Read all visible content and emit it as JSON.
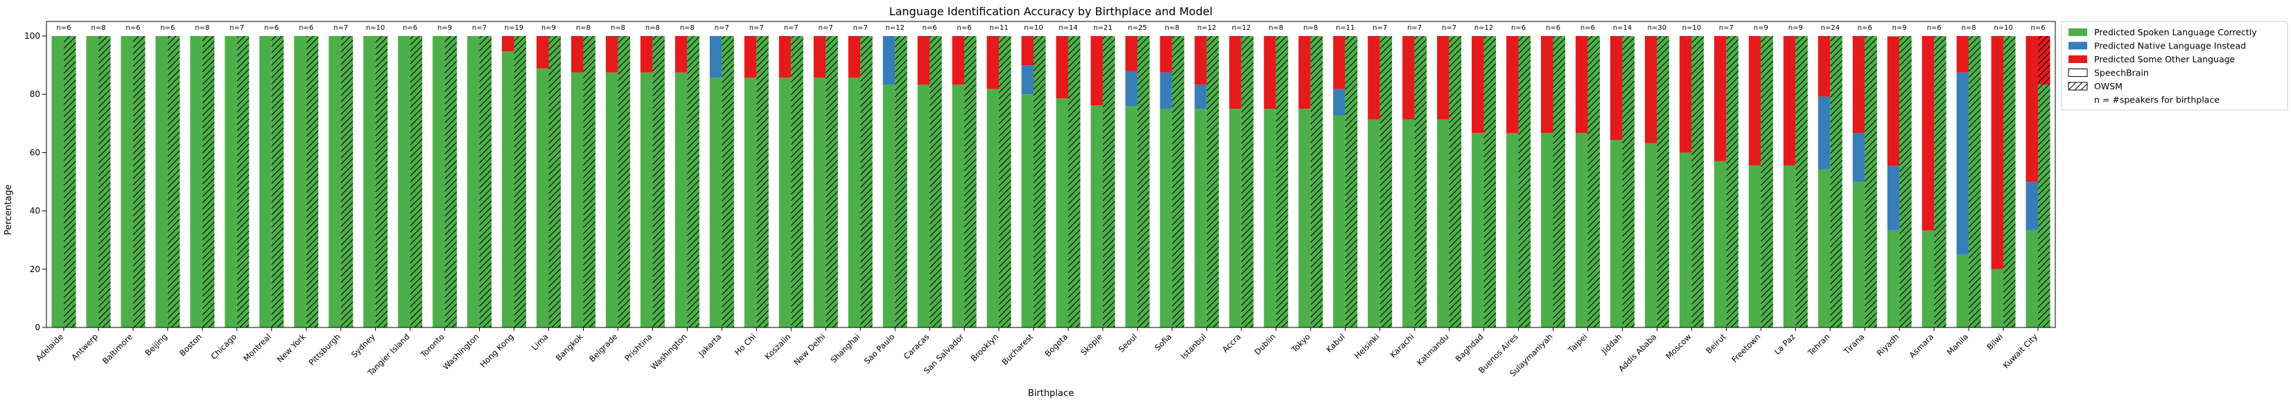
{
  "chart_data": {
    "type": "bar",
    "title": "Language Identification Accuracy by Birthplace and Model",
    "xlabel": "Birthplace",
    "ylabel": "Percentage",
    "ylim": [
      0,
      105
    ],
    "yticks": [
      0,
      20,
      40,
      60,
      80,
      100
    ],
    "grid": false,
    "legend_position": "outside-right",
    "colors": {
      "correct": "#4daf4a",
      "native": "#377eb8",
      "other": "#e41a1c"
    },
    "legend": [
      {
        "label": "Predicted Spoken Language Correctly",
        "swatch": "correct"
      },
      {
        "label": "Predicted Native Language Instead",
        "swatch": "native"
      },
      {
        "label": "Predicted Some Other Language",
        "swatch": "other"
      },
      {
        "label": "SpeechBrain",
        "swatch": "plain"
      },
      {
        "label": "OWSM",
        "swatch": "hatch"
      },
      {
        "label": "n = #speakers for birthplace",
        "swatch": "none"
      }
    ],
    "models": [
      "SpeechBrain",
      "OWSM"
    ],
    "categories": [
      {
        "name": "Adelaide",
        "n": "n=6",
        "speechbrain": [
          100,
          0,
          0
        ],
        "owsm": [
          100,
          0,
          0
        ]
      },
      {
        "name": "Antwerp",
        "n": "n=8",
        "speechbrain": [
          100,
          0,
          0
        ],
        "owsm": [
          100,
          0,
          0
        ]
      },
      {
        "name": "Baltimore",
        "n": "n=6",
        "speechbrain": [
          100,
          0,
          0
        ],
        "owsm": [
          100,
          0,
          0
        ]
      },
      {
        "name": "Beijing",
        "n": "n=6",
        "speechbrain": [
          100,
          0,
          0
        ],
        "owsm": [
          100,
          0,
          0
        ]
      },
      {
        "name": "Boston",
        "n": "n=8",
        "speechbrain": [
          100,
          0,
          0
        ],
        "owsm": [
          100,
          0,
          0
        ]
      },
      {
        "name": "Chicago",
        "n": "n=7",
        "speechbrain": [
          100,
          0,
          0
        ],
        "owsm": [
          100,
          0,
          0
        ]
      },
      {
        "name": "Montreal",
        "n": "n=6",
        "speechbrain": [
          100,
          0,
          0
        ],
        "owsm": [
          100,
          0,
          0
        ]
      },
      {
        "name": "New York",
        "n": "n=6",
        "speechbrain": [
          100,
          0,
          0
        ],
        "owsm": [
          100,
          0,
          0
        ]
      },
      {
        "name": "Pittsburgh",
        "n": "n=7",
        "speechbrain": [
          100,
          0,
          0
        ],
        "owsm": [
          100,
          0,
          0
        ]
      },
      {
        "name": "Sydney",
        "n": "n=10",
        "speechbrain": [
          100,
          0,
          0
        ],
        "owsm": [
          100,
          0,
          0
        ]
      },
      {
        "name": "Tangier Island",
        "n": "n=6",
        "speechbrain": [
          100,
          0,
          0
        ],
        "owsm": [
          100,
          0,
          0
        ]
      },
      {
        "name": "Toronto",
        "n": "n=9",
        "speechbrain": [
          100,
          0,
          0
        ],
        "owsm": [
          100,
          0,
          0
        ]
      },
      {
        "name": "Washington",
        "n": "n=7",
        "speechbrain": [
          100,
          0,
          0
        ],
        "owsm": [
          100,
          0,
          0
        ]
      },
      {
        "name": "Hong Kong",
        "n": "n=19",
        "speechbrain": [
          94.7,
          0,
          5.3
        ],
        "owsm": [
          100,
          0,
          0
        ]
      },
      {
        "name": "Lima",
        "n": "n=9",
        "speechbrain": [
          88.9,
          0,
          11.1
        ],
        "owsm": [
          100,
          0,
          0
        ]
      },
      {
        "name": "Bangkok",
        "n": "n=8",
        "speechbrain": [
          87.5,
          0,
          12.5
        ],
        "owsm": [
          100,
          0,
          0
        ]
      },
      {
        "name": "Belgrade",
        "n": "n=8",
        "speechbrain": [
          87.5,
          0,
          12.5
        ],
        "owsm": [
          100,
          0,
          0
        ]
      },
      {
        "name": "Prishtina",
        "n": "n=8",
        "speechbrain": [
          87.5,
          0,
          12.5
        ],
        "owsm": [
          100,
          0,
          0
        ]
      },
      {
        "name": "Washington",
        "n": "n=8",
        "speechbrain": [
          87.5,
          0,
          12.5
        ],
        "owsm": [
          100,
          0,
          0
        ]
      },
      {
        "name": "Jakarta",
        "n": "n=7",
        "speechbrain": [
          85.7,
          14.3,
          0
        ],
        "owsm": [
          100,
          0,
          0
        ]
      },
      {
        "name": "Ho Chi",
        "n": "n=7",
        "speechbrain": [
          85.7,
          0,
          14.3
        ],
        "owsm": [
          100,
          0,
          0
        ]
      },
      {
        "name": "Koszalin",
        "n": "n=7",
        "speechbrain": [
          85.7,
          0,
          14.3
        ],
        "owsm": [
          100,
          0,
          0
        ]
      },
      {
        "name": "New Delhi",
        "n": "n=7",
        "speechbrain": [
          85.7,
          0,
          14.3
        ],
        "owsm": [
          100,
          0,
          0
        ]
      },
      {
        "name": "Shanghai",
        "n": "n=7",
        "speechbrain": [
          85.7,
          0,
          14.3
        ],
        "owsm": [
          100,
          0,
          0
        ]
      },
      {
        "name": "Sao Paulo",
        "n": "n=12",
        "speechbrain": [
          83.3,
          16.7,
          0
        ],
        "owsm": [
          100,
          0,
          0
        ]
      },
      {
        "name": "Caracas",
        "n": "n=6",
        "speechbrain": [
          83.3,
          0,
          16.7
        ],
        "owsm": [
          100,
          0,
          0
        ]
      },
      {
        "name": "San Salvador",
        "n": "n=6",
        "speechbrain": [
          83.3,
          0,
          16.7
        ],
        "owsm": [
          100,
          0,
          0
        ]
      },
      {
        "name": "Brooklyn",
        "n": "n=11",
        "speechbrain": [
          81.8,
          0,
          18.2
        ],
        "owsm": [
          100,
          0,
          0
        ]
      },
      {
        "name": "Bucharest",
        "n": "n=10",
        "speechbrain": [
          80,
          10,
          10
        ],
        "owsm": [
          100,
          0,
          0
        ]
      },
      {
        "name": "Bogota",
        "n": "n=14",
        "speechbrain": [
          78.6,
          0,
          21.4
        ],
        "owsm": [
          100,
          0,
          0
        ]
      },
      {
        "name": "Skopje",
        "n": "n=21",
        "speechbrain": [
          76.2,
          0,
          23.8
        ],
        "owsm": [
          100,
          0,
          0
        ]
      },
      {
        "name": "Seoul",
        "n": "n=25",
        "speechbrain": [
          76,
          12,
          12
        ],
        "owsm": [
          100,
          0,
          0
        ]
      },
      {
        "name": "Sofia",
        "n": "n=8",
        "speechbrain": [
          75,
          12.5,
          12.5
        ],
        "owsm": [
          100,
          0,
          0
        ]
      },
      {
        "name": "Istanbul",
        "n": "n=12",
        "speechbrain": [
          75,
          8.3,
          16.7
        ],
        "owsm": [
          100,
          0,
          0
        ]
      },
      {
        "name": "Accra",
        "n": "n=12",
        "speechbrain": [
          75,
          0,
          25
        ],
        "owsm": [
          100,
          0,
          0
        ]
      },
      {
        "name": "Dublin",
        "n": "n=8",
        "speechbrain": [
          75,
          0,
          25
        ],
        "owsm": [
          100,
          0,
          0
        ]
      },
      {
        "name": "Tokyo",
        "n": "n=8",
        "speechbrain": [
          75,
          0,
          25
        ],
        "owsm": [
          100,
          0,
          0
        ]
      },
      {
        "name": "Kabul",
        "n": "n=11",
        "speechbrain": [
          72.7,
          9.1,
          18.2
        ],
        "owsm": [
          100,
          0,
          0
        ]
      },
      {
        "name": "Helsinki",
        "n": "n=7",
        "speechbrain": [
          71.4,
          0,
          28.6
        ],
        "owsm": [
          100,
          0,
          0
        ]
      },
      {
        "name": "Karachi",
        "n": "n=7",
        "speechbrain": [
          71.4,
          0,
          28.6
        ],
        "owsm": [
          100,
          0,
          0
        ]
      },
      {
        "name": "Katmandu",
        "n": "n=7",
        "speechbrain": [
          71.4,
          0,
          28.6
        ],
        "owsm": [
          100,
          0,
          0
        ]
      },
      {
        "name": "Baghdad",
        "n": "n=12",
        "speechbrain": [
          66.7,
          0,
          33.3
        ],
        "owsm": [
          100,
          0,
          0
        ]
      },
      {
        "name": "Buenos Aires",
        "n": "n=6",
        "speechbrain": [
          66.7,
          0,
          33.3
        ],
        "owsm": [
          100,
          0,
          0
        ]
      },
      {
        "name": "Sulaymaniyah",
        "n": "n=6",
        "speechbrain": [
          66.7,
          0,
          33.3
        ],
        "owsm": [
          100,
          0,
          0
        ]
      },
      {
        "name": "Taipei",
        "n": "n=6",
        "speechbrain": [
          66.7,
          0,
          33.3
        ],
        "owsm": [
          100,
          0,
          0
        ]
      },
      {
        "name": "Jiddah",
        "n": "n=14",
        "speechbrain": [
          64.3,
          0,
          35.7
        ],
        "owsm": [
          100,
          0,
          0
        ]
      },
      {
        "name": "Addis Ababa",
        "n": "n=30",
        "speechbrain": [
          63.3,
          0,
          36.7
        ],
        "owsm": [
          100,
          0,
          0
        ]
      },
      {
        "name": "Moscow",
        "n": "n=10",
        "speechbrain": [
          60,
          0,
          40
        ],
        "owsm": [
          100,
          0,
          0
        ]
      },
      {
        "name": "Beirut",
        "n": "n=7",
        "speechbrain": [
          57.1,
          0,
          42.9
        ],
        "owsm": [
          100,
          0,
          0
        ]
      },
      {
        "name": "Freetown",
        "n": "n=9",
        "speechbrain": [
          55.6,
          0,
          44.4
        ],
        "owsm": [
          100,
          0,
          0
        ]
      },
      {
        "name": "La Paz",
        "n": "n=9",
        "speechbrain": [
          55.6,
          0,
          44.4
        ],
        "owsm": [
          100,
          0,
          0
        ]
      },
      {
        "name": "Tehran",
        "n": "n=24",
        "speechbrain": [
          54.2,
          25,
          20.8
        ],
        "owsm": [
          100,
          0,
          0
        ]
      },
      {
        "name": "Tirana",
        "n": "n=6",
        "speechbrain": [
          50,
          16.7,
          33.3
        ],
        "owsm": [
          100,
          0,
          0
        ]
      },
      {
        "name": "Riyadh",
        "n": "n=9",
        "speechbrain": [
          33.3,
          22.2,
          44.4
        ],
        "owsm": [
          100,
          0,
          0
        ]
      },
      {
        "name": "Asmara",
        "n": "n=6",
        "speechbrain": [
          33.3,
          0,
          66.7
        ],
        "owsm": [
          100,
          0,
          0
        ]
      },
      {
        "name": "Manila",
        "n": "n=8",
        "speechbrain": [
          25,
          62.5,
          12.5
        ],
        "owsm": [
          100,
          0,
          0
        ]
      },
      {
        "name": "Bilwi",
        "n": "n=10",
        "speechbrain": [
          20,
          0,
          80
        ],
        "owsm": [
          100,
          0,
          0
        ]
      },
      {
        "name": "Kuwait City",
        "n": "n=6",
        "speechbrain": [
          33.3,
          16.7,
          50
        ],
        "owsm": [
          83.3,
          0,
          16.7
        ]
      }
    ]
  }
}
